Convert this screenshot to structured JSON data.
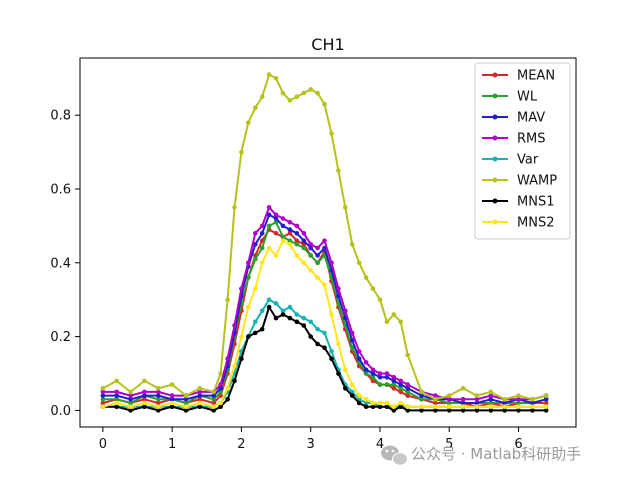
{
  "watermark": {
    "text": "公众号 · Matlab科研助手",
    "icon": "wechat-icon"
  },
  "chart_data": {
    "type": "line",
    "title": "CH1",
    "xlabel": "",
    "ylabel": "",
    "xlim": [
      -0.33,
      6.83
    ],
    "ylim": [
      -0.045,
      0.955
    ],
    "xticks": [
      0,
      1,
      2,
      3,
      4,
      5,
      6
    ],
    "yticks": [
      0.0,
      0.2,
      0.4,
      0.6,
      0.8
    ],
    "ytick_labels": [
      "0.0",
      "0.2",
      "0.4",
      "0.6",
      "0.8"
    ],
    "grid": false,
    "legend": "top-right",
    "x": [
      0.0,
      0.2,
      0.4,
      0.6,
      0.8,
      1.0,
      1.2,
      1.4,
      1.6,
      1.7,
      1.8,
      1.9,
      2.0,
      2.1,
      2.2,
      2.3,
      2.4,
      2.5,
      2.6,
      2.7,
      2.8,
      2.9,
      3.0,
      3.1,
      3.2,
      3.3,
      3.4,
      3.5,
      3.6,
      3.7,
      3.8,
      3.9,
      4.0,
      4.1,
      4.2,
      4.3,
      4.4,
      4.6,
      4.8,
      5.0,
      5.2,
      5.4,
      5.6,
      5.8,
      6.0,
      6.2,
      6.4
    ],
    "series": [
      {
        "name": "MEAN",
        "color": "#d62728",
        "values": [
          0.02,
          0.03,
          0.02,
          0.03,
          0.02,
          0.03,
          0.02,
          0.03,
          0.02,
          0.04,
          0.1,
          0.18,
          0.27,
          0.36,
          0.42,
          0.46,
          0.49,
          0.48,
          0.47,
          0.48,
          0.46,
          0.45,
          0.42,
          0.4,
          0.43,
          0.35,
          0.28,
          0.22,
          0.16,
          0.12,
          0.1,
          0.08,
          0.07,
          0.07,
          0.06,
          0.05,
          0.04,
          0.03,
          0.02,
          0.02,
          0.02,
          0.01,
          0.02,
          0.01,
          0.02,
          0.02,
          0.02
        ]
      },
      {
        "name": "WL",
        "color": "#2ca02c",
        "values": [
          0.03,
          0.03,
          0.02,
          0.04,
          0.03,
          0.03,
          0.02,
          0.04,
          0.03,
          0.05,
          0.11,
          0.2,
          0.29,
          0.36,
          0.41,
          0.44,
          0.5,
          0.51,
          0.47,
          0.46,
          0.45,
          0.44,
          0.42,
          0.4,
          0.42,
          0.36,
          0.29,
          0.23,
          0.17,
          0.13,
          0.1,
          0.09,
          0.07,
          0.07,
          0.07,
          0.06,
          0.05,
          0.03,
          0.03,
          0.02,
          0.02,
          0.02,
          0.02,
          0.02,
          0.02,
          0.02,
          0.03
        ]
      },
      {
        "name": "MAV",
        "color": "#1f1fcf",
        "values": [
          0.04,
          0.04,
          0.03,
          0.04,
          0.04,
          0.03,
          0.03,
          0.04,
          0.04,
          0.06,
          0.12,
          0.21,
          0.31,
          0.39,
          0.45,
          0.48,
          0.53,
          0.52,
          0.5,
          0.49,
          0.48,
          0.46,
          0.44,
          0.42,
          0.44,
          0.38,
          0.31,
          0.25,
          0.19,
          0.14,
          0.11,
          0.1,
          0.09,
          0.09,
          0.08,
          0.07,
          0.06,
          0.04,
          0.03,
          0.03,
          0.02,
          0.02,
          0.03,
          0.02,
          0.03,
          0.02,
          0.03
        ]
      },
      {
        "name": "RMS",
        "color": "#b000c8",
        "values": [
          0.05,
          0.05,
          0.04,
          0.05,
          0.05,
          0.04,
          0.04,
          0.05,
          0.05,
          0.07,
          0.14,
          0.23,
          0.33,
          0.4,
          0.48,
          0.5,
          0.55,
          0.53,
          0.52,
          0.51,
          0.5,
          0.48,
          0.45,
          0.44,
          0.46,
          0.4,
          0.33,
          0.27,
          0.21,
          0.16,
          0.13,
          0.11,
          0.1,
          0.1,
          0.09,
          0.08,
          0.07,
          0.05,
          0.04,
          0.03,
          0.03,
          0.03,
          0.04,
          0.03,
          0.03,
          0.03,
          0.04
        ]
      },
      {
        "name": "Var",
        "color": "#17b3b3",
        "values": [
          0.01,
          0.01,
          0.01,
          0.01,
          0.01,
          0.01,
          0.01,
          0.01,
          0.01,
          0.02,
          0.05,
          0.1,
          0.16,
          0.2,
          0.24,
          0.27,
          0.3,
          0.29,
          0.27,
          0.28,
          0.26,
          0.25,
          0.24,
          0.22,
          0.21,
          0.16,
          0.11,
          0.07,
          0.05,
          0.03,
          0.02,
          0.02,
          0.01,
          0.01,
          0.01,
          0.01,
          0.01,
          0.01,
          0.01,
          0.01,
          0.01,
          0.01,
          0.01,
          0.01,
          0.01,
          0.01,
          0.01
        ]
      },
      {
        "name": "WAMP",
        "color": "#b5c21a",
        "values": [
          0.06,
          0.08,
          0.05,
          0.08,
          0.06,
          0.07,
          0.04,
          0.06,
          0.05,
          0.1,
          0.3,
          0.55,
          0.7,
          0.78,
          0.82,
          0.85,
          0.91,
          0.9,
          0.86,
          0.84,
          0.85,
          0.86,
          0.87,
          0.86,
          0.83,
          0.75,
          0.65,
          0.55,
          0.45,
          0.4,
          0.36,
          0.33,
          0.3,
          0.24,
          0.26,
          0.24,
          0.15,
          0.05,
          0.03,
          0.04,
          0.06,
          0.04,
          0.05,
          0.03,
          0.04,
          0.03,
          0.04
        ]
      },
      {
        "name": "MNS1",
        "color": "#000000",
        "values": [
          0.01,
          0.01,
          0.0,
          0.01,
          0.0,
          0.01,
          0.0,
          0.01,
          0.0,
          0.01,
          0.03,
          0.08,
          0.14,
          0.2,
          0.21,
          0.22,
          0.28,
          0.25,
          0.26,
          0.25,
          0.24,
          0.23,
          0.2,
          0.18,
          0.17,
          0.14,
          0.1,
          0.06,
          0.04,
          0.02,
          0.01,
          0.01,
          0.01,
          0.01,
          0.0,
          0.01,
          0.0,
          0.0,
          0.0,
          0.0,
          0.0,
          0.0,
          0.0,
          0.0,
          0.0,
          0.0,
          0.0
        ]
      },
      {
        "name": "MNS2",
        "color": "#ffe51a",
        "values": [
          0.01,
          0.02,
          0.01,
          0.02,
          0.01,
          0.02,
          0.01,
          0.02,
          0.01,
          0.02,
          0.06,
          0.12,
          0.2,
          0.28,
          0.33,
          0.4,
          0.44,
          0.42,
          0.46,
          0.45,
          0.42,
          0.4,
          0.38,
          0.36,
          0.34,
          0.26,
          0.18,
          0.11,
          0.07,
          0.04,
          0.03,
          0.02,
          0.02,
          0.02,
          0.01,
          0.02,
          0.01,
          0.01,
          0.01,
          0.01,
          0.01,
          0.01,
          0.01,
          0.01,
          0.01,
          0.01,
          0.01
        ]
      }
    ]
  }
}
